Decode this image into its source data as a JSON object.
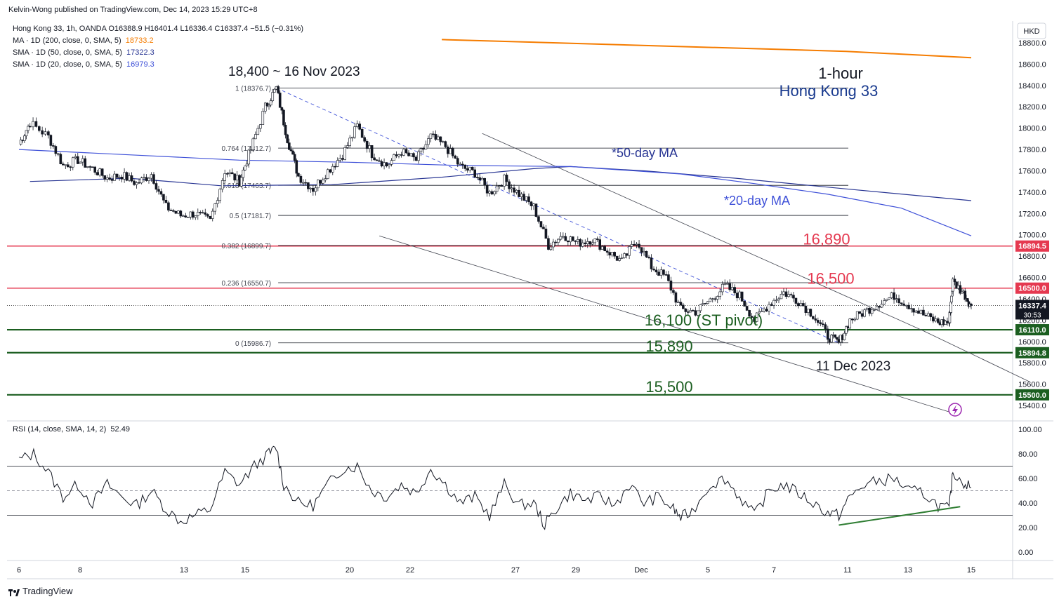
{
  "header": {
    "published": "Kelvin-Wong published on TradingView.com, Dec 14, 2023 15:29 UTC+8"
  },
  "legend": {
    "symbol_line": "Hong Kong 33, 1h, OANDA  O16388.9  H16401.4  L16336.4  C16337.4  −51.5 (−0.31%)",
    "ma200_label": "MA · 1D (200, close, 0, SMA, 5)",
    "ma200_value": "18733.2",
    "sma50_label": "SMA · 1D (50, close, 0, SMA, 5)",
    "sma50_value": "17322.3",
    "sma20_label": "SMA · 1D (20, close, 0, SMA, 5)",
    "sma20_value": "16979.3",
    "rsi_label": "RSI (14, close, SMA, 14, 2)",
    "rsi_value": "52.49"
  },
  "branding": {
    "name": "TradingView"
  },
  "colors": {
    "ma200": "#f57c00",
    "sma50": "#283593",
    "sma20": "#3f51d8",
    "resistance": "#e53950",
    "support": "#1b5e20",
    "fib": "#131722",
    "channel": "#131722",
    "rsi": "#131722",
    "axis_text": "#131722"
  },
  "chart_data": {
    "type": "candlestick",
    "instrument": "Hong Kong 33",
    "timeframe": "1-hour",
    "currency_label": "HKD",
    "ylim": [
      15300,
      18900
    ],
    "y_ticks": [
      "15400.0",
      "15600.0",
      "15800.0",
      "16000.0",
      "16200.0",
      "16400.0",
      "16600.0",
      "16800.0",
      "17000.0",
      "17200.0",
      "17400.0",
      "17600.0",
      "17800.0",
      "18000.0",
      "18200.0",
      "18400.0",
      "18600.0",
      "18800.0"
    ],
    "x_ticks": [
      "6",
      "8",
      "13",
      "15",
      "20",
      "22",
      "27",
      "29",
      "Dec",
      "5",
      "7",
      "11",
      "13",
      "15"
    ],
    "price_path": [
      [
        6,
        17850
      ],
      [
        6.3,
        18050
      ],
      [
        6.8,
        17920
      ],
      [
        7.2,
        17650
      ],
      [
        7.6,
        17700
      ],
      [
        8.0,
        17620
      ],
      [
        8.4,
        17530
      ],
      [
        8.8,
        17560
      ],
      [
        9.2,
        17480
      ],
      [
        9.6,
        17570
      ],
      [
        10.0,
        17260
      ],
      [
        10.4,
        17180
      ],
      [
        10.8,
        17200
      ],
      [
        11.2,
        17130
      ],
      [
        11.6,
        17600
      ],
      [
        12.0,
        17500
      ],
      [
        12.3,
        17800
      ],
      [
        12.7,
        18200
      ],
      [
        13.0,
        18376
      ],
      [
        13.3,
        17900
      ],
      [
        13.6,
        17550
      ],
      [
        14.0,
        17430
      ],
      [
        14.4,
        17600
      ],
      [
        14.8,
        17750
      ],
      [
        15.2,
        18020
      ],
      [
        15.6,
        17760
      ],
      [
        16.0,
        17650
      ],
      [
        16.4,
        17780
      ],
      [
        16.8,
        17700
      ],
      [
        17.2,
        17920
      ],
      [
        17.6,
        17830
      ],
      [
        18.0,
        17640
      ],
      [
        18.4,
        17580
      ],
      [
        18.8,
        17390
      ],
      [
        19.2,
        17520
      ],
      [
        19.6,
        17380
      ],
      [
        20.0,
        17260
      ],
      [
        20.4,
        16900
      ],
      [
        20.8,
        17000
      ],
      [
        21.2,
        16920
      ],
      [
        21.6,
        16960
      ],
      [
        22.0,
        16850
      ],
      [
        22.4,
        16750
      ],
      [
        22.8,
        16950
      ],
      [
        23.2,
        16700
      ],
      [
        23.6,
        16600
      ],
      [
        24.0,
        16300
      ],
      [
        24.4,
        16280
      ],
      [
        24.8,
        16390
      ],
      [
        25.2,
        16520
      ],
      [
        25.6,
        16430
      ],
      [
        26.0,
        16200
      ],
      [
        26.4,
        16350
      ],
      [
        26.8,
        16460
      ],
      [
        27.2,
        16380
      ],
      [
        27.6,
        16250
      ],
      [
        28.0,
        16050
      ],
      [
        28.3,
        15987
      ],
      [
        28.6,
        16200
      ],
      [
        29.0,
        16280
      ],
      [
        29.4,
        16360
      ],
      [
        29.8,
        16430
      ],
      [
        30.2,
        16340
      ],
      [
        30.6,
        16250
      ],
      [
        31.0,
        16180
      ],
      [
        31.3,
        16180
      ],
      [
        31.4,
        16560
      ],
      [
        31.7,
        16450
      ],
      [
        31.9,
        16337
      ]
    ],
    "resistance_levels": [
      {
        "label": "16,890",
        "value": 16894.5,
        "axis_label": "16894.5"
      },
      {
        "label": "16,500",
        "value": 16500.0,
        "axis_label": "16500.0"
      }
    ],
    "support_levels": [
      {
        "label": "16,100 (ST pivot)",
        "value": 16110.0,
        "axis_label": "16110.0"
      },
      {
        "label": "15,890",
        "value": 15894.8,
        "axis_label": "15894.8"
      },
      {
        "label": "15,500",
        "value": 15500.0,
        "axis_label": "15500.0"
      }
    ],
    "current_price": {
      "value": 16337.4,
      "axis_label": "16337.4",
      "countdown": "30:53"
    },
    "fib_levels": [
      {
        "label": "1 (18376.7)",
        "value": 18376.7
      },
      {
        "label": "0.764 (17812.7)",
        "value": 17812.7
      },
      {
        "label": "0.618 (17463.7)",
        "value": 17463.7
      },
      {
        "label": "0.5 (17181.7)",
        "value": 17181.7
      },
      {
        "label": "0.382 (16899.7)",
        "value": 16899.7
      },
      {
        "label": "0.236 (16550.7)",
        "value": 16550.7
      },
      {
        "label": "0 (15986.7)",
        "value": 15986.7
      }
    ],
    "ma200": [
      [
        17.5,
        18830
      ],
      [
        28.5,
        18720
      ],
      [
        31.9,
        18660
      ]
    ],
    "sma50": [
      [
        6.3,
        17500
      ],
      [
        9.0,
        17530
      ],
      [
        11.5,
        17460
      ],
      [
        14.5,
        17470
      ],
      [
        17.5,
        17540
      ],
      [
        20.0,
        17620
      ],
      [
        21.0,
        17640
      ],
      [
        23.0,
        17600
      ],
      [
        25.5,
        17530
      ],
      [
        28.5,
        17430
      ],
      [
        31.9,
        17320
      ]
    ],
    "sma20": [
      [
        6.0,
        17800
      ],
      [
        9.0,
        17750
      ],
      [
        12.0,
        17700
      ],
      [
        15.0,
        17680
      ],
      [
        18.0,
        17650
      ],
      [
        21.0,
        17640
      ],
      [
        24.0,
        17570
      ],
      [
        26.0,
        17480
      ],
      [
        28.0,
        17380
      ],
      [
        30.0,
        17250
      ],
      [
        31.9,
        16990
      ]
    ],
    "channel_upper": [
      [
        18.6,
        17950
      ],
      [
        30.6,
        16100
      ]
    ],
    "channel_upper_ext": [
      [
        30.6,
        16100
      ],
      [
        33.5,
        15620
      ]
    ],
    "channel_lower": [
      [
        15.8,
        16990
      ],
      [
        31.3,
        15340
      ]
    ],
    "trend_dashed": [
      [
        13.0,
        18376.7
      ],
      [
        28.3,
        15986.7
      ]
    ],
    "rsi": {
      "ylim": [
        0,
        100
      ],
      "ticks": [
        "0.00",
        "20.00",
        "40.00",
        "60.00",
        "80.00",
        "100.00"
      ],
      "upper_band": 70,
      "lower_band": 30,
      "mid": 50,
      "path": [
        [
          6,
          75
        ],
        [
          6.4,
          80
        ],
        [
          6.8,
          65
        ],
        [
          7.2,
          45
        ],
        [
          7.6,
          55
        ],
        [
          8.0,
          40
        ],
        [
          8.4,
          55
        ],
        [
          8.8,
          45
        ],
        [
          9.2,
          38
        ],
        [
          9.6,
          50
        ],
        [
          10.0,
          35
        ],
        [
          10.4,
          25
        ],
        [
          10.8,
          30
        ],
        [
          11.2,
          35
        ],
        [
          11.6,
          65
        ],
        [
          12.0,
          55
        ],
        [
          12.4,
          70
        ],
        [
          12.8,
          80
        ],
        [
          13.0,
          85
        ],
        [
          13.2,
          55
        ],
        [
          13.6,
          40
        ],
        [
          14.0,
          38
        ],
        [
          14.4,
          55
        ],
        [
          14.8,
          68
        ],
        [
          15.2,
          70
        ],
        [
          15.6,
          50
        ],
        [
          16.0,
          45
        ],
        [
          16.4,
          55
        ],
        [
          16.8,
          48
        ],
        [
          17.2,
          68
        ],
        [
          17.6,
          55
        ],
        [
          18.0,
          40
        ],
        [
          18.4,
          45
        ],
        [
          18.8,
          30
        ],
        [
          19.2,
          55
        ],
        [
          19.6,
          38
        ],
        [
          20.0,
          40
        ],
        [
          20.3,
          22
        ],
        [
          20.6,
          35
        ],
        [
          21.0,
          48
        ],
        [
          21.4,
          42
        ],
        [
          21.8,
          45
        ],
        [
          22.2,
          38
        ],
        [
          22.6,
          55
        ],
        [
          23.0,
          40
        ],
        [
          23.4,
          45
        ],
        [
          23.8,
          35
        ],
        [
          24.0,
          28
        ],
        [
          24.3,
          33
        ],
        [
          24.8,
          55
        ],
        [
          25.2,
          60
        ],
        [
          25.6,
          45
        ],
        [
          26.0,
          30
        ],
        [
          26.4,
          50
        ],
        [
          26.8,
          55
        ],
        [
          27.2,
          48
        ],
        [
          27.6,
          40
        ],
        [
          28.0,
          32
        ],
        [
          28.3,
          30
        ],
        [
          28.6,
          45
        ],
        [
          29.0,
          55
        ],
        [
          29.4,
          58
        ],
        [
          29.8,
          60
        ],
        [
          30.2,
          50
        ],
        [
          30.6,
          48
        ],
        [
          31.0,
          38
        ],
        [
          31.3,
          35
        ],
        [
          31.4,
          65
        ],
        [
          31.7,
          57
        ],
        [
          31.9,
          52.5
        ]
      ],
      "divergence_line": [
        [
          28.3,
          22
        ],
        [
          31.6,
          37
        ]
      ]
    },
    "annotations": {
      "high_label": "18,400 ~ 16 Nov 2023",
      "low_label": "11 Dec 2023",
      "title_line1": "1-hour",
      "title_line2": "Hong Kong 33",
      "ma50_tag": "*50-day MA",
      "ma20_tag": "*20-day MA"
    }
  }
}
